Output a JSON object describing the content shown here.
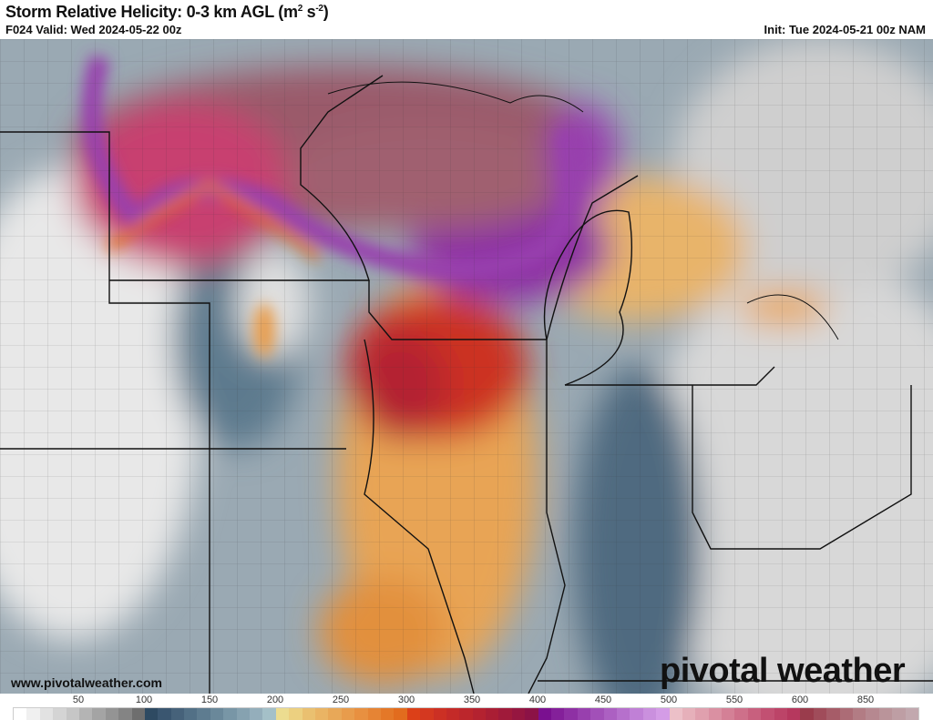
{
  "header": {
    "title": "Storm Relative Helicity: 0-3 km AGL (m",
    "title_sup1": "2",
    "title_mid": " s",
    "title_sup2": "-2",
    "title_end": ")",
    "valid": "F024 Valid: Wed 2024-05-22 00z",
    "init": "Init: Tue 2024-05-21 00z NAM"
  },
  "footer": {
    "url": "www.pivotalweather.com",
    "logo": "pivotal weather"
  },
  "colorbar": {
    "labels": [
      "50",
      "100",
      "150",
      "200",
      "250",
      "300",
      "350",
      "400",
      "450",
      "500",
      "550",
      "600",
      "850"
    ],
    "colors": [
      "#ffffff",
      "#f0f0f0",
      "#e2e2e2",
      "#d4d4d4",
      "#c6c6c6",
      "#b4b4b4",
      "#a4a4a4",
      "#949494",
      "#848484",
      "#6e6e6e",
      "#2e4a62",
      "#3a5670",
      "#46627a",
      "#527086",
      "#5e7c90",
      "#6a889a",
      "#7896a6",
      "#86a2b0",
      "#94aebb",
      "#a4c0c8",
      "#ecdc90",
      "#ecd080",
      "#eac070",
      "#eab464",
      "#e8a858",
      "#e89c4c",
      "#e89040",
      "#e68434",
      "#e47828",
      "#e26c1e",
      "#dc4018",
      "#d43820",
      "#cc3024",
      "#c42a28",
      "#bc262c",
      "#b42230",
      "#aa1e34",
      "#a01a3a",
      "#961640",
      "#8c1246",
      "#7a1090",
      "#84209a",
      "#8e30a4",
      "#9840ae",
      "#a250b8",
      "#ac60c2",
      "#b670cc",
      "#c080d6",
      "#ca90de",
      "#d49ce6",
      "#ecc0c8",
      "#e6b0ba",
      "#e0a0ae",
      "#da90a2",
      "#d48096",
      "#ce708a",
      "#c8607e",
      "#c25072",
      "#bc4468",
      "#b6385e",
      "#9a3c4c",
      "#a04c5a",
      "#a65c68",
      "#ac6c76",
      "#b27c84",
      "#b68890",
      "#ba949a",
      "#be9ea4",
      "#c2a8ae"
    ]
  }
}
